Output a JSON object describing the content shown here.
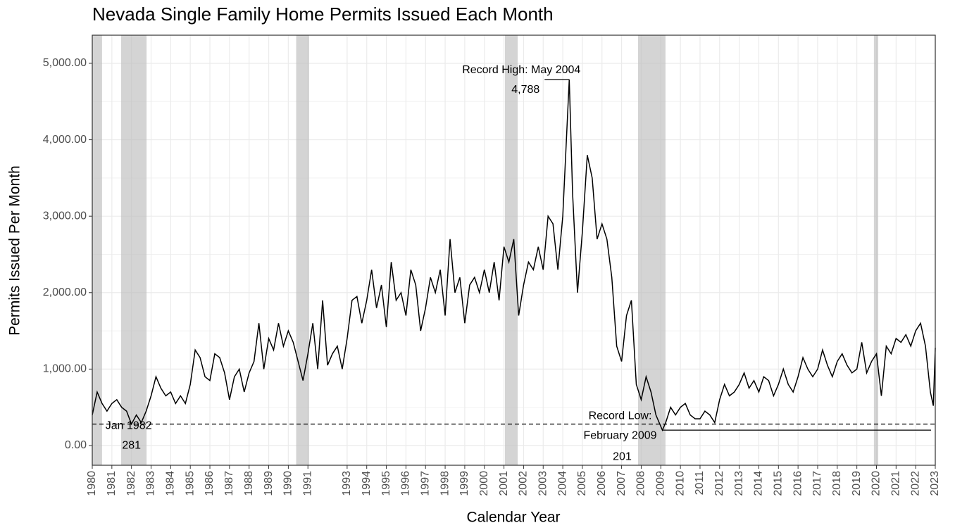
{
  "chart_data": {
    "type": "line",
    "title": "Nevada Single Family Home Permits Issued Each Month",
    "x_label": "Calendar Year",
    "y_label": "Permits Issued Per Month",
    "color": "#000000",
    "x": [
      1980,
      1980.25,
      1980.5,
      1980.75,
      1981,
      1981.25,
      1981.5,
      1981.75,
      1982,
      1982.25,
      1982.5,
      1982.75,
      1983,
      1983.25,
      1983.5,
      1983.75,
      1984,
      1984.25,
      1984.5,
      1984.75,
      1985,
      1985.25,
      1985.5,
      1985.75,
      1986,
      1986.25,
      1986.5,
      1986.75,
      1987,
      1987.25,
      1987.5,
      1987.75,
      1988,
      1988.25,
      1988.5,
      1988.75,
      1989,
      1989.25,
      1989.5,
      1989.75,
      1990,
      1990.25,
      1990.5,
      1990.75,
      1991,
      1991.25,
      1991.5,
      1991.75,
      1992,
      1992.25,
      1992.5,
      1992.75,
      1993,
      1993.25,
      1993.5,
      1993.75,
      1994,
      1994.25,
      1994.5,
      1994.75,
      1995,
      1995.25,
      1995.5,
      1995.75,
      1996,
      1996.25,
      1996.5,
      1996.75,
      1997,
      1997.25,
      1997.5,
      1997.75,
      1998,
      1998.25,
      1998.5,
      1998.75,
      1999,
      1999.25,
      1999.5,
      1999.75,
      2000,
      2000.25,
      2000.5,
      2000.75,
      2001,
      2001.25,
      2001.5,
      2001.75,
      2002,
      2002.25,
      2002.5,
      2002.75,
      2003,
      2003.25,
      2003.5,
      2003.75,
      2004,
      2004.33,
      2004.5,
      2004.75,
      2005,
      2005.25,
      2005.5,
      2005.75,
      2006,
      2006.25,
      2006.5,
      2006.75,
      2007,
      2007.25,
      2007.5,
      2007.75,
      2008,
      2008.25,
      2008.5,
      2008.75,
      2009.08,
      2009.25,
      2009.5,
      2009.75,
      2010,
      2010.25,
      2010.5,
      2010.75,
      2011,
      2011.25,
      2011.5,
      2011.75,
      2012,
      2012.25,
      2012.5,
      2012.75,
      2013,
      2013.25,
      2013.5,
      2013.75,
      2014,
      2014.25,
      2014.5,
      2014.75,
      2015,
      2015.25,
      2015.5,
      2015.75,
      2016,
      2016.25,
      2016.5,
      2016.75,
      2017,
      2017.25,
      2017.5,
      2017.75,
      2018,
      2018.25,
      2018.5,
      2018.75,
      2019,
      2019.25,
      2019.5,
      2019.75,
      2020,
      2020.25,
      2020.5,
      2020.75,
      2021,
      2021.25,
      2021.5,
      2021.75,
      2022,
      2022.25,
      2022.5,
      2022.75,
      2022.9,
      2023
    ],
    "values": [
      400,
      700,
      550,
      450,
      550,
      600,
      500,
      450,
      281,
      400,
      300,
      450,
      650,
      900,
      750,
      650,
      700,
      550,
      650,
      550,
      800,
      1250,
      1150,
      900,
      850,
      1200,
      1150,
      950,
      600,
      900,
      1000,
      700,
      950,
      1100,
      1600,
      1000,
      1400,
      1250,
      1600,
      1300,
      1500,
      1350,
      1100,
      850,
      1200,
      1600,
      1000,
      1900,
      1050,
      1200,
      1300,
      1000,
      1400,
      1900,
      1950,
      1600,
      1900,
      2300,
      1800,
      2100,
      1550,
      2400,
      1900,
      2000,
      1700,
      2300,
      2100,
      1500,
      1800,
      2200,
      2000,
      2300,
      1700,
      2700,
      2000,
      2200,
      1600,
      2100,
      2200,
      2000,
      2300,
      2000,
      2400,
      1900,
      2600,
      2400,
      2700,
      1700,
      2100,
      2400,
      2300,
      2600,
      2300,
      3000,
      2900,
      2300,
      3000,
      4788,
      3300,
      2000,
      2800,
      3800,
      3500,
      2700,
      2900,
      2700,
      2200,
      1300,
      1100,
      1700,
      1900,
      800,
      600,
      900,
      700,
      400,
      201,
      300,
      500,
      400,
      500,
      550,
      400,
      350,
      350,
      450,
      400,
      300,
      600,
      800,
      650,
      700,
      800,
      950,
      750,
      850,
      700,
      900,
      850,
      650,
      800,
      1000,
      800,
      700,
      900,
      1150,
      1000,
      900,
      1000,
      1250,
      1050,
      900,
      1100,
      1200,
      1050,
      950,
      1000,
      1350,
      950,
      1100,
      1200,
      650,
      1300,
      1200,
      1400,
      1350,
      1450,
      1300,
      1500,
      1600,
      1300,
      700,
      520,
      1280
    ],
    "shaded_periods": [
      [
        1980.0,
        1980.5
      ],
      [
        1981.47,
        1982.77
      ],
      [
        1990.4,
        1991.06
      ],
      [
        2001.05,
        2001.7
      ],
      [
        2007.84,
        2009.24
      ],
      [
        2019.87,
        2020.09
      ]
    ],
    "annotations": [
      {
        "x": 2004.33,
        "value": 4788,
        "label_lines": [
          "Record High: May 2004"
        ],
        "value_label": "4,788",
        "line": "solid"
      },
      {
        "x": 2009.08,
        "value": 201,
        "label_lines": [
          "Record Low:",
          "February 2009"
        ],
        "value_label": "201",
        "line": "solid"
      },
      {
        "x": 1982,
        "value": 281,
        "label_lines": [
          "Jan 1982"
        ],
        "value_label": "281",
        "line": "dashed"
      }
    ],
    "xlim": [
      1980,
      2023
    ],
    "xticks": [
      1980,
      1981,
      1982,
      1983,
      1984,
      1985,
      1986,
      1987,
      1988,
      1989,
      1990,
      1991,
      1993,
      1994,
      1995,
      1996,
      1997,
      1998,
      1999,
      2000,
      2001,
      2002,
      2003,
      2004,
      2005,
      2006,
      2007,
      2008,
      2009,
      2010,
      2011,
      2012,
      2013,
      2014,
      2015,
      2016,
      2017,
      2018,
      2019,
      2020,
      2021,
      2022,
      2023
    ],
    "ylim": [
      -258,
      5368
    ],
    "yticks": [
      {
        "value": 0,
        "label": "0.00"
      },
      {
        "value": 1000,
        "label": "1,000.00"
      },
      {
        "value": 2000,
        "label": "2,000.00"
      },
      {
        "value": 3000,
        "label": "3,000.00"
      },
      {
        "value": 4000,
        "label": "4,000.00"
      },
      {
        "value": 5000,
        "label": "5,000.00"
      }
    ],
    "grid": true
  }
}
